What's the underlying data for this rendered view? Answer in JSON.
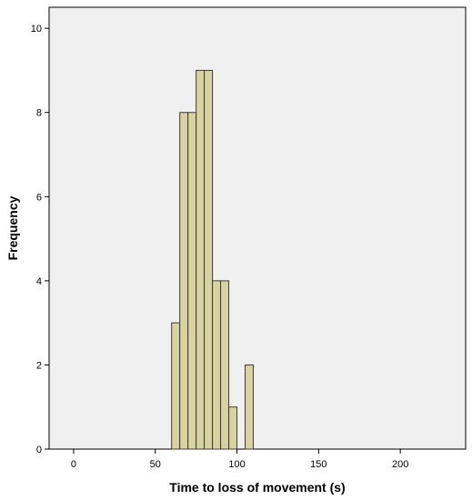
{
  "chart_data": {
    "type": "bar",
    "title": "",
    "xlabel": "Time to loss of movement (s)",
    "ylabel": "Frequency",
    "xlim": [
      -15,
      240
    ],
    "ylim": [
      0,
      10.5
    ],
    "x_ticks": [
      0,
      50,
      100,
      150,
      200
    ],
    "y_ticks": [
      0,
      2,
      4,
      6,
      8,
      10
    ],
    "bin_width": 5,
    "bins": [
      {
        "start": 60,
        "end": 65,
        "count": 3
      },
      {
        "start": 65,
        "end": 70,
        "count": 8
      },
      {
        "start": 70,
        "end": 75,
        "count": 8
      },
      {
        "start": 75,
        "end": 80,
        "count": 9
      },
      {
        "start": 80,
        "end": 85,
        "count": 9
      },
      {
        "start": 85,
        "end": 90,
        "count": 4
      },
      {
        "start": 90,
        "end": 95,
        "count": 4
      },
      {
        "start": 95,
        "end": 100,
        "count": 1
      },
      {
        "start": 105,
        "end": 110,
        "count": 2
      }
    ],
    "grid": false,
    "bar_color": "#d8d3a0",
    "bar_edge_color": "#3c3c3c",
    "plot_background": "#f0f0f0"
  }
}
